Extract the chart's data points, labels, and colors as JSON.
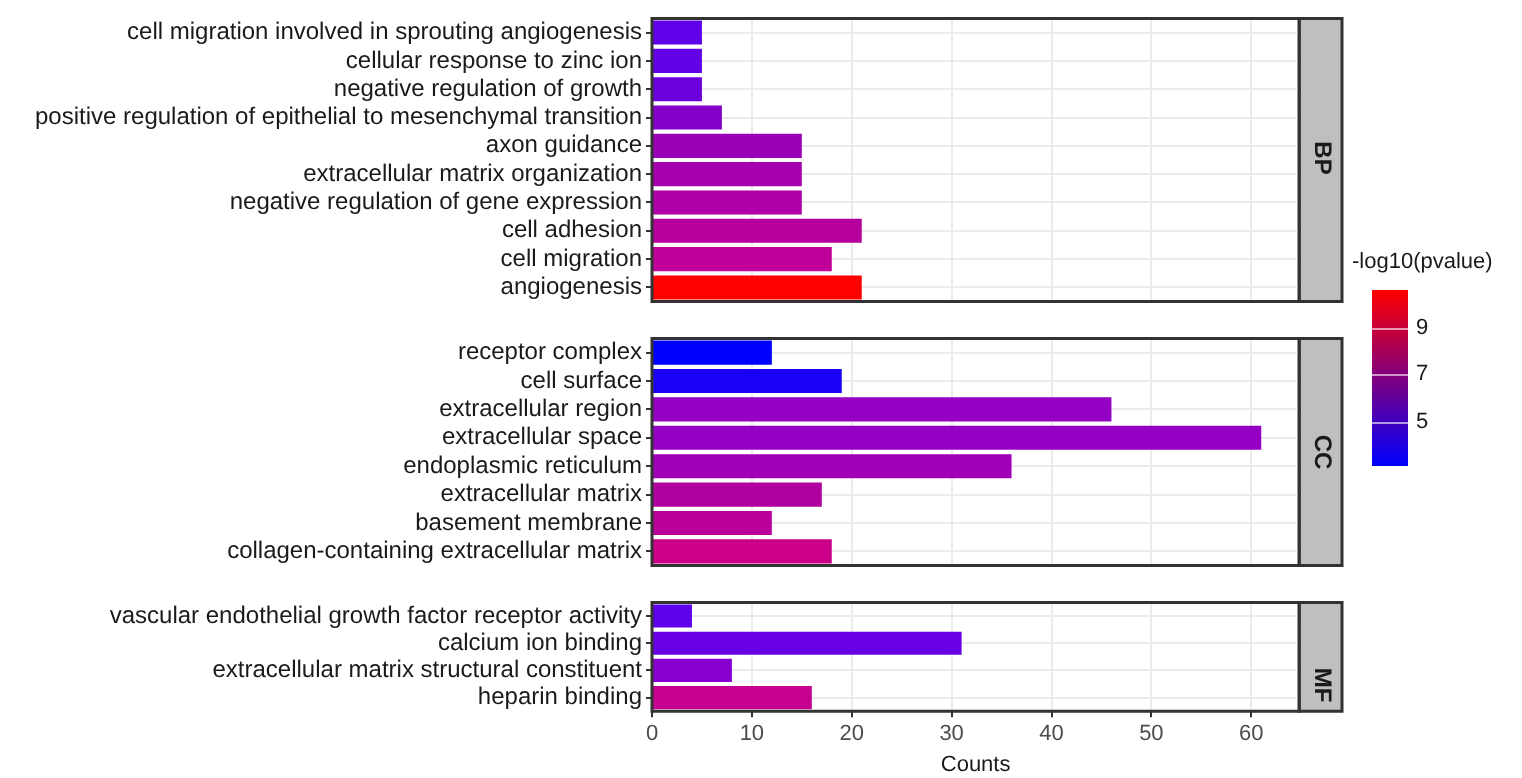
{
  "chart_data": [
    {
      "type": "bar",
      "orientation": "horizontal",
      "title": "BP",
      "categories": [
        "cell migration involved in sprouting angiogenesis",
        "cellular response to zinc ion",
        "negative regulation of growth",
        "positive regulation of epithelial to mesenchymal transition",
        "axon guidance",
        "extracellular matrix organization",
        "negative regulation of gene expression",
        "cell adhesion",
        "cell migration",
        "angiogenesis"
      ],
      "values": [
        5,
        5,
        5,
        7,
        15,
        15,
        15,
        21,
        18,
        21
      ],
      "colors": [
        "#6000e8",
        "#6200e6",
        "#6a00dc",
        "#8400c8",
        "#9a00b8",
        "#a600ae",
        "#ae00a6",
        "#b6009e",
        "#c00098",
        "#ff0000"
      ],
      "xlim": [
        0,
        64.8
      ],
      "xticks": [
        0,
        10,
        20,
        30,
        40,
        50,
        60
      ],
      "tick_labels": "y",
      "grid": true,
      "legend": false,
      "clabel": "-log10(pvalue)",
      "clim": [
        3.1,
        10.6
      ],
      "cticks": [
        5,
        7,
        9
      ]
    },
    {
      "type": "bar",
      "orientation": "horizontal",
      "title": "CC",
      "categories": [
        "receptor complex",
        "cell surface",
        "extracellular region",
        "extracellular space",
        "endoplasmic reticulum",
        "extracellular matrix",
        "basement membrane",
        "collagen-containing extracellular matrix"
      ],
      "values": [
        12,
        19,
        46,
        61,
        36,
        17,
        12,
        18
      ],
      "colors": [
        "#0000ff",
        "#1a00f4",
        "#9400c4",
        "#9400c4",
        "#a000b6",
        "#b0009e",
        "#ba009a",
        "#cc0088"
      ],
      "xlim": [
        0,
        64.8
      ],
      "xticks": [
        0,
        10,
        20,
        30,
        40,
        50,
        60
      ],
      "tick_labels": "y",
      "grid": true,
      "legend": false
    },
    {
      "type": "bar",
      "orientation": "horizontal",
      "title": "MF",
      "xlabel": "Counts",
      "categories": [
        "vascular endothelial growth factor receptor activity",
        "calcium ion binding",
        "extracellular matrix structural constituent",
        "heparin binding"
      ],
      "values": [
        4,
        31,
        8,
        16
      ],
      "colors": [
        "#5e00ea",
        "#6800e6",
        "#8800d0",
        "#c60090"
      ],
      "xlim": [
        0,
        64.8
      ],
      "xticks": [
        0,
        10,
        20,
        30,
        40,
        50,
        60
      ],
      "grid": true,
      "legend": false
    }
  ]
}
